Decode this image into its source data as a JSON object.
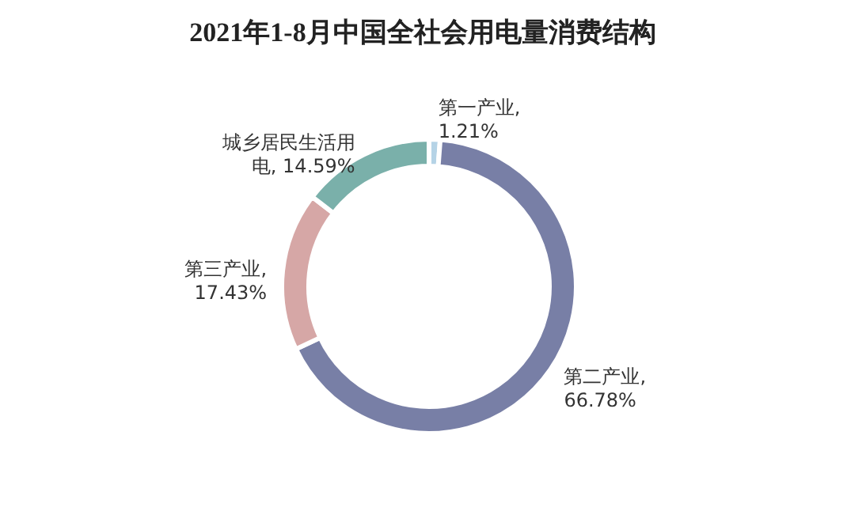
{
  "chart_data": {
    "type": "donut",
    "title": "2021年1-8月中国全社会用电量消费结构",
    "categories": [
      null,
      null,
      null,
      null
    ],
    "values": [
      1.21,
      66.78,
      17.43,
      14.59
    ],
    "value_labels": [
      "第一产业, 1.21%",
      "第二产业, 66.78%",
      "第三产业, 17.43%",
      "城乡居民生活用电, 14.59%"
    ],
    "colors": [
      "#b5d3e6",
      "#787fa6",
      "#d6a7a6",
      "#7ab0aa"
    ]
  }
}
